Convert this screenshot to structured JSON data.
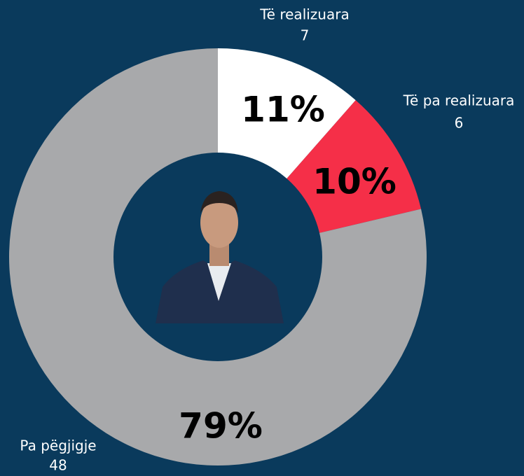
{
  "chart_data": {
    "type": "donut",
    "categories": [
      "Të realizuara",
      "Të pa realizuara",
      "Pa pëgjigje"
    ],
    "values": [
      7,
      6,
      48
    ],
    "value_labels": [
      "11%",
      "10%",
      "79%"
    ],
    "colors": [
      "#ffffff",
      "#f52f48",
      "#a8a9ab"
    ]
  }
}
